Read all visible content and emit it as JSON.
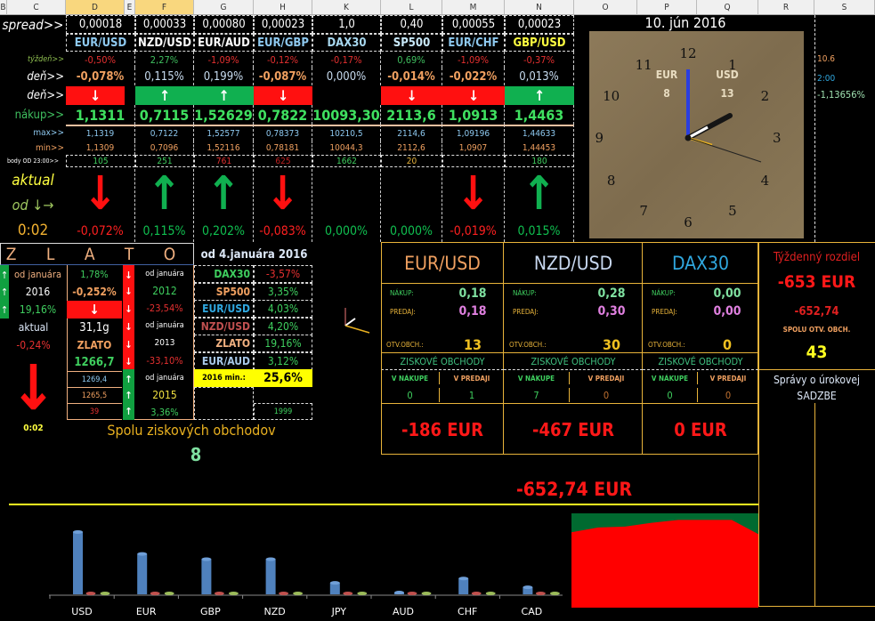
{
  "columns": [
    "B",
    "C",
    "D",
    "E",
    "F",
    "G",
    "H",
    "K",
    "L",
    "M",
    "N",
    "O",
    "P",
    "Q",
    "R",
    "S"
  ],
  "row_labels": {
    "spread": "spread>>",
    "week": "týždeň>>",
    "day": "deň>>",
    "day_dir": "deň>>",
    "buy": "nákup>>",
    "max": "max>>",
    "min": "min>>",
    "points": "body OD 23:00>>",
    "aktual": "aktual",
    "od": "od ↓→",
    "time": "0:02"
  },
  "instruments": [
    {
      "name": "EUR/USD",
      "name_color": "#8ec9f0",
      "spread": "0,00018",
      "week": "-0,50%",
      "week_color": "#e53030",
      "day": "-0,078%",
      "day_color": "#f0a060",
      "dir": "down",
      "buy": "1,1311",
      "max": "1,1319",
      "min": "1,1309",
      "points": "105",
      "points_color": "#3fcf5f",
      "aktual_dir": "down",
      "aktual": "-0,072%"
    },
    {
      "name": "NZD/USD",
      "name_color": "#ffffff",
      "spread": "0,00033",
      "week": "2,27%",
      "week_color": "#3fbf5f",
      "day": "0,115%",
      "day_color": "#c8dcf0",
      "dir": "up",
      "buy": "0,7115",
      "max": "0,7122",
      "min": "0,7096",
      "points": "251",
      "points_color": "#3fcf5f",
      "aktual_dir": "up",
      "aktual": "0,115%"
    },
    {
      "name": "EUR/AUD",
      "name_color": "#ffffff",
      "spread": "0,00080",
      "week": "-1,09%",
      "week_color": "#e53030",
      "day": "0,199%",
      "day_color": "#c8dcf0",
      "dir": "up",
      "buy": "1,52629",
      "max": "1,52577",
      "min": "1,52116",
      "points": "761",
      "points_color": "#e53030",
      "aktual_dir": "up",
      "aktual": "0,202%"
    },
    {
      "name": "EUR/GBP",
      "name_color": "#8ec9f0",
      "spread": "0,00023",
      "week": "-0,12%",
      "week_color": "#e53030",
      "day": "-0,087%",
      "day_color": "#f0a060",
      "dir": "down",
      "buy": "0,7822",
      "max": "0,78373",
      "min": "0,78181",
      "points": "625",
      "points_color": "#c02020",
      "aktual_dir": "down",
      "aktual": "-0,083%"
    },
    {
      "name": "DAX30",
      "name_color": "#a8d8f0",
      "spread": "1,0",
      "week": "-0,17%",
      "week_color": "#e53030",
      "day": "0,000%",
      "day_color": "#c8dcf0",
      "dir": "none",
      "buy": "10093,30",
      "max": "10210,5",
      "min": "10044,3",
      "points": "1662",
      "points_color": "#3fcf5f",
      "aktual_dir": "none",
      "aktual": "0,000%"
    },
    {
      "name": "SP500",
      "name_color": "#c8e8f8",
      "spread": "0,40",
      "week": "0,69%",
      "week_color": "#3fbf5f",
      "day": "-0,014%",
      "day_color": "#f0a060",
      "dir": "down",
      "buy": "2113,6",
      "max": "2114,6",
      "min": "2112,6",
      "points": "20",
      "points_color": "#e8b33a",
      "aktual_dir": "none",
      "aktual": "0,000%"
    },
    {
      "name": "EUR/CHF",
      "name_color": "#8ec9f0",
      "spread": "0,00055",
      "week": "-1,09%",
      "week_color": "#e53030",
      "day": "-0,022%",
      "day_color": "#f0a060",
      "dir": "down",
      "buy": "1,0913",
      "max": "1,09196",
      "min": "1,0907",
      "points": "",
      "points_color": "#3fcf5f",
      "aktual_dir": "down",
      "aktual": "-0,019%"
    },
    {
      "name": "GBP/USD",
      "name_color": "#ffff40",
      "spread": "0,00023",
      "week": "-0,37%",
      "week_color": "#e53030",
      "day": "0,013%",
      "day_color": "#c8dcf0",
      "dir": "up",
      "buy": "1,4463",
      "max": "1,44633",
      "min": "1,44453",
      "points": "180",
      "points_color": "#3fcf5f",
      "aktual_dir": "up",
      "aktual": "0,015%"
    }
  ],
  "clock": {
    "date": "10. jún 2016",
    "left_label": "EUR",
    "left_value": "8",
    "right_label": "USD",
    "right_value": "13",
    "numbers": [
      "12",
      "1",
      "2",
      "3",
      "4",
      "5",
      "6",
      "7",
      "8",
      "9",
      "10",
      "11"
    ]
  },
  "side_info": {
    "value1": "10.6",
    "value2": "2:00",
    "value3": "-1,13656%"
  },
  "gold": {
    "title": "Z L A T O",
    "since_title": "od 4.januára 2016",
    "left": {
      "since": "od januára",
      "year": "2016",
      "pct": "19,16%",
      "aktual": "aktual",
      "aktual_pct": "-0,24%",
      "time": "0:02"
    },
    "mid": {
      "pct1": "1,78%",
      "pct2": "-0,252%",
      "weight": "31,1g",
      "name": "ZLATO",
      "price": "1266,7",
      "max": "1269,4",
      "min": "1265,5",
      "points": "39"
    },
    "years": [
      {
        "since": "od januára",
        "year": "2012",
        "pct": "-23,54%"
      },
      {
        "since": "od januára",
        "year": "2013",
        "pct": "-33,10%"
      },
      {
        "since": "od januára",
        "year": "2015",
        "pct": "3,36%"
      }
    ],
    "ytd": [
      {
        "name": "DAX30",
        "pct": "-3,57%"
      },
      {
        "name": "SP500",
        "pct": "3,35%"
      },
      {
        "name": "EUR/USD",
        "pct": "4,03%"
      },
      {
        "name": "NZD/USD",
        "pct": "4,20%"
      },
      {
        "name": "ZLATO",
        "pct": "19,16%"
      },
      {
        "name": "EUR/AUD",
        "pct": "3,12%"
      }
    ],
    "min_label": "2016 min.:",
    "min_value": "25,6%",
    "bottom_value": "1999"
  },
  "profit_total": {
    "label": "Spolu ziskových obchodov",
    "value": "8"
  },
  "positions": [
    {
      "name": "EUR/USD",
      "color": "#f0a060",
      "buy_label": "NÁKUP:",
      "buy": "0,18",
      "sell_label": "PREDAJ:",
      "sell": "0,18",
      "open_label": "OTV.OBCH.:",
      "open": "13",
      "profit_label": "ZISKOVÉ OBCHODY",
      "in_buy_label": "V NÁKUPE",
      "in_buy": "0",
      "in_sell_label": "V PREDAJI",
      "in_sell": "1",
      "result": "-186 EUR"
    },
    {
      "name": "NZD/USD",
      "color": "#c8d8f0",
      "buy_label": "NÁKUP:",
      "buy": "0,28",
      "sell_label": "PREDAJ:",
      "sell": "0,30",
      "open_label": "OTV.OBCH.:",
      "open": "30",
      "profit_label": "ZISKOVÉ OBCHODY",
      "in_buy_label": "V NÁKUPE",
      "in_buy": "7",
      "in_sell_label": "V PREDAJI",
      "in_sell": "0",
      "result": "-467 EUR"
    },
    {
      "name": "DAX30",
      "color": "#30a8e0",
      "buy_label": "NÁKUP:",
      "buy": "0,00",
      "sell_label": "PREDAJ:",
      "sell": "0,00",
      "open_label": "OTV.OBCH.:",
      "open": "0",
      "profit_label": "ZISKOVÉ OBCHODY",
      "in_buy_label": "V NÁKUPE",
      "in_buy": "0",
      "in_sell_label": "V PREDAJI",
      "in_sell": "0",
      "result": "0 EUR"
    }
  ],
  "weekly": {
    "title": "Týždenný rozdiel",
    "eur": "-653 EUR",
    "value": "-652,74",
    "open_label": "SPOLU OTV. OBCH.",
    "open": "43",
    "news": "Správy o úrokovej",
    "news2": "SADZBE"
  },
  "total": "-652,74 EUR",
  "chart_data": [
    {
      "type": "bar",
      "categories": [
        "USD",
        "EUR",
        "GBP",
        "NZD",
        "JPY",
        "AUD",
        "CHF",
        "CAD"
      ],
      "series": [
        {
          "values": [
            71,
            46,
            40,
            40,
            13,
            2,
            18,
            8
          ],
          "color": "#4f81bd"
        },
        {
          "values": [
            0,
            0,
            0,
            0,
            0,
            0,
            0,
            0
          ],
          "color": "#c0504d"
        },
        {
          "values": [
            0,
            0,
            0,
            0,
            0,
            0,
            0,
            0
          ],
          "color": "#9bbb59"
        }
      ]
    },
    {
      "type": "area",
      "x": [
        0,
        1,
        2,
        3,
        4,
        5,
        6,
        7
      ],
      "series": [
        {
          "values": [
            80,
            85,
            86,
            90,
            93,
            93,
            93,
            78
          ],
          "color": "#ff0000"
        },
        {
          "values": [
            100,
            100,
            100,
            100,
            100,
            100,
            100,
            100
          ],
          "color": "#006a30"
        }
      ],
      "ylim": [
        0,
        100
      ]
    }
  ]
}
